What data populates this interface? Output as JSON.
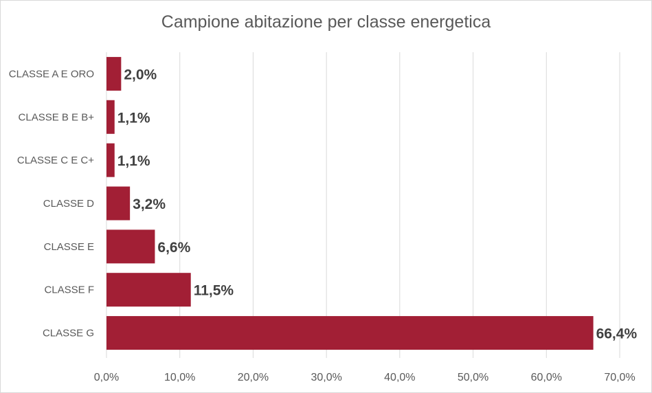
{
  "chart_data": {
    "type": "bar",
    "orientation": "horizontal",
    "title": "Campione abitazione per classe energetica",
    "categories": [
      "CLASSE A E ORO",
      "CLASSE B E B+",
      "CLASSE C E C+",
      "CLASSE D",
      "CLASSE E",
      "CLASSE F",
      "CLASSE G"
    ],
    "values": [
      2.0,
      1.1,
      1.1,
      3.2,
      6.6,
      11.5,
      66.4
    ],
    "data_labels": [
      "2,0%",
      "1,1%",
      "1,1%",
      "3,2%",
      "6,6%",
      "11,5%",
      "66,4%"
    ],
    "xlim": [
      0,
      70
    ],
    "x_ticks": [
      0,
      10,
      20,
      30,
      40,
      50,
      60,
      70
    ],
    "x_tick_labels": [
      "0,0%",
      "10,0%",
      "20,0%",
      "30,0%",
      "40,0%",
      "50,0%",
      "60,0%",
      "70,0%"
    ],
    "xlabel": "",
    "ylabel": "",
    "grid": true,
    "legend": "none",
    "bar_color": "#a21f35"
  }
}
